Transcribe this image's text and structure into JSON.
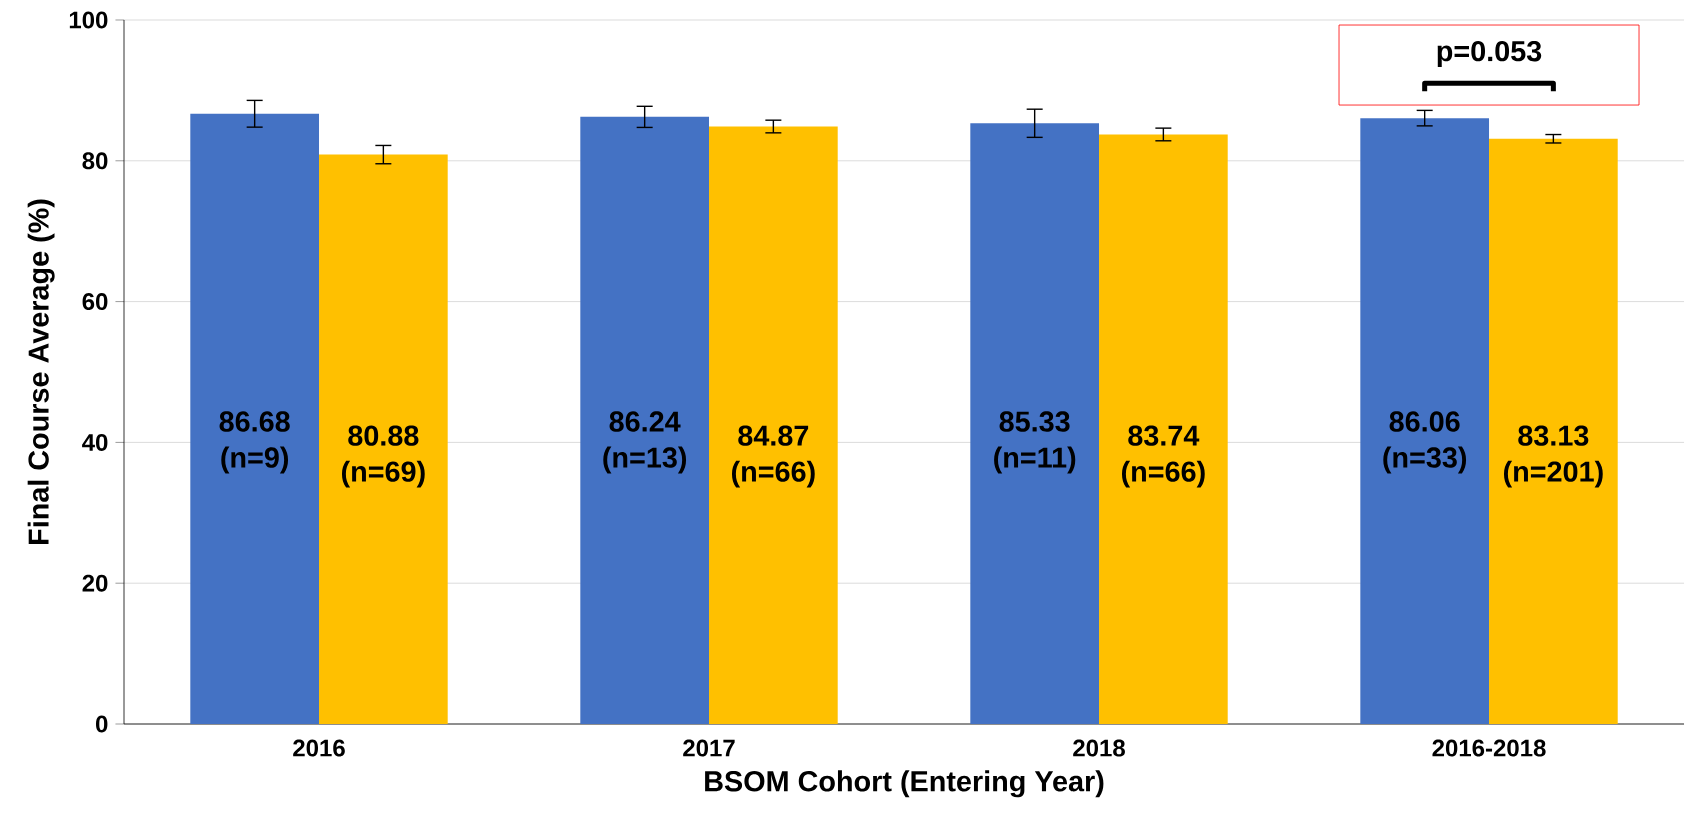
{
  "chart_data": {
    "type": "bar",
    "xlabel": "BSOM Cohort (Entering Year)",
    "ylabel": "Final Course Average (%)",
    "categories": [
      "2016",
      "2017",
      "2018",
      "2016-2018"
    ],
    "series": [
      {
        "color": "#4472c4",
        "values": [
          86.68,
          86.24,
          85.33,
          86.06
        ],
        "errors": [
          1.9,
          1.5,
          2.0,
          1.1
        ],
        "value_labels": [
          "86.68 (n=9)",
          "86.24 (n=13)",
          "85.33 (n=11)",
          "86.06 (n=33)"
        ]
      },
      {
        "color": "#ffc000",
        "values": [
          80.88,
          84.87,
          83.74,
          83.13
        ],
        "errors": [
          1.3,
          0.9,
          0.9,
          0.6
        ],
        "value_labels": [
          "80.88 (n=69)",
          "84.87 (n=66)",
          "83.74 (n=66)",
          "83.13 (n=201)"
        ]
      }
    ],
    "ylim": [
      0,
      100
    ],
    "yticks": [
      0,
      20,
      40,
      60,
      80,
      100
    ],
    "grid": "y",
    "annotations": [
      "p=0.053"
    ]
  }
}
